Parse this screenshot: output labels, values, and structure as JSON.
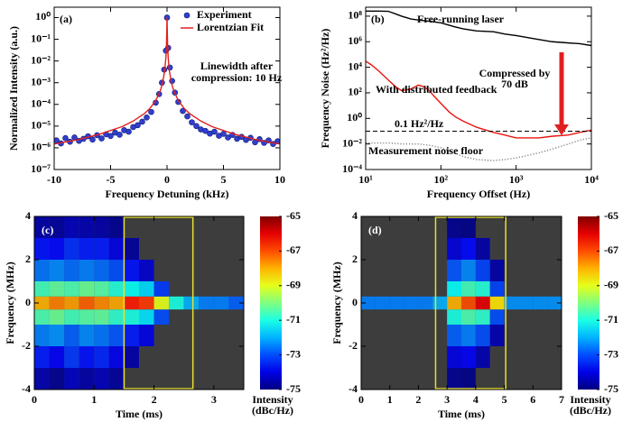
{
  "chart_data": [
    {
      "type": "line",
      "label": "(a)",
      "xlabel": "Frequency Detuning (kHz)",
      "ylabel": "Normalized Intensity (a.u.)",
      "xlim": [
        -10,
        10
      ],
      "xticks": [
        -10,
        -5,
        0,
        5,
        10
      ],
      "ylog": true,
      "ylim": [
        1e-07,
        3
      ],
      "yticks": [
        {
          "value": 1e-07,
          "label": "10⁻⁷"
        },
        {
          "value": 1e-06,
          "label": "10⁻⁶"
        },
        {
          "value": 1e-05,
          "label": "10⁻⁵"
        },
        {
          "value": 0.0001,
          "label": "10⁻⁴"
        },
        {
          "value": 0.001,
          "label": "10⁻³"
        },
        {
          "value": 0.01,
          "label": "10⁻²"
        },
        {
          "value": 0.1,
          "label": "10⁻¹"
        },
        {
          "value": 1,
          "label": "10⁰"
        }
      ],
      "background": "#ffffff",
      "legend": "upper right",
      "annotations": [
        [
          "Linewidth after",
          "compression: 10 Hz"
        ]
      ],
      "series": [
        {
          "name": "Experiment",
          "mode": "markers",
          "color": "#2f3fd0",
          "x": [
            -9.8,
            -9.4,
            -9,
            -8.6,
            -8.2,
            -7.8,
            -7.4,
            -7,
            -6.6,
            -6.2,
            -5.8,
            -5.4,
            -5,
            -4.6,
            -4.2,
            -3.8,
            -3.4,
            -3,
            -2.6,
            -2.2,
            -1.8,
            -1.4,
            -1,
            -0.7,
            -0.45,
            -0.25,
            -0.1,
            0,
            0.1,
            0.25,
            0.45,
            0.7,
            1,
            1.4,
            1.8,
            2.2,
            2.6,
            3,
            3.4,
            3.8,
            4.2,
            4.6,
            5,
            5.4,
            5.8,
            6.2,
            6.6,
            7,
            7.4,
            7.8,
            8.2,
            8.6,
            9,
            9.4,
            9.8
          ],
          "values": [
            2.2e-06,
            1.6e-06,
            2.8e-06,
            1.9e-06,
            3e-06,
            2.1e-06,
            2.6e-06,
            3.4e-06,
            2.4e-06,
            3.8e-06,
            2.7e-06,
            4.2e-06,
            3.5e-06,
            5e-06,
            4e-06,
            6.5e-06,
            5.5e-06,
            9e-06,
            1.1e-05,
            1.6e-05,
            2.5e-05,
            4.5e-05,
            0.00012,
            0.0003,
            0.001,
            0.004,
            0.03,
            1,
            0.04,
            0.005,
            0.0012,
            0.00035,
            0.00013,
            5e-05,
            2.8e-05,
            1.5e-05,
            1e-05,
            7e-06,
            6e-06,
            4.5e-06,
            5.5e-06,
            3.6e-06,
            4.4e-06,
            3e-06,
            3.9e-06,
            2.6e-06,
            3.2e-06,
            2.3e-06,
            2.9e-06,
            1.8e-06,
            2.5e-06,
            1.7e-06,
            2.2e-06,
            1.5e-06,
            2e-06
          ]
        },
        {
          "name": "Lorentzian Fit",
          "mode": "line",
          "color": "#e02020",
          "x": [
            -10,
            -8,
            -6,
            -4,
            -3,
            -2,
            -1.5,
            -1,
            -0.6,
            -0.4,
            -0.2,
            -0.1,
            -0.05,
            -0.02,
            -0.01,
            0,
            0.01,
            0.02,
            0.05,
            0.1,
            0.2,
            0.4,
            0.6,
            1,
            1.5,
            2,
            3,
            4,
            6,
            8,
            10
          ],
          "values": [
            1.5e-06,
            2.3e-06,
            4.2e-06,
            9.4e-06,
            1.7e-05,
            3.8e-05,
            6.7e-05,
            0.00015,
            0.00042,
            0.00094,
            0.0037,
            0.015,
            0.057,
            0.27,
            0.6,
            1,
            0.6,
            0.27,
            0.057,
            0.015,
            0.0037,
            0.00094,
            0.00042,
            0.00015,
            6.7e-05,
            3.8e-05,
            1.7e-05,
            9.4e-06,
            4.2e-06,
            2.3e-06,
            1.5e-06
          ]
        }
      ]
    },
    {
      "type": "line",
      "label": "(b)",
      "xlabel": "Frequency Offset (Hz)",
      "ylabel": "Frequency Noise (Hz²/Hz)",
      "xlog": true,
      "xlim": [
        10,
        10000
      ],
      "xticks": [
        {
          "value": 10,
          "label": "10¹"
        },
        {
          "value": 100,
          "label": "10²"
        },
        {
          "value": 1000,
          "label": "10³"
        },
        {
          "value": 10000,
          "label": "10⁴"
        }
      ],
      "ylog": true,
      "ylim": [
        0.0001,
        500000000.0
      ],
      "yticks": [
        {
          "value": 0.0001,
          "label": "10⁻⁴"
        },
        {
          "value": 0.01,
          "label": "10⁻²"
        },
        {
          "value": 1,
          "label": "10⁰"
        },
        {
          "value": 100,
          "label": "10²"
        },
        {
          "value": 10000.0,
          "label": "10⁴"
        },
        {
          "value": 1000000.0,
          "label": "10⁶"
        },
        {
          "value": 100000000.0,
          "label": "10⁸"
        }
      ],
      "background": "#ffffff",
      "reference_line": {
        "value": 0.1,
        "label": "0.1 Hz²/Hz"
      },
      "annotations": [
        [
          "Compressed by",
          "70 dB"
        ]
      ],
      "series": [
        {
          "name": "Free-running laser",
          "mode": "line",
          "color": "#000000",
          "x": [
            10,
            15,
            20,
            25,
            30,
            40,
            50,
            70,
            100,
            150,
            200,
            300,
            500,
            700,
            1000,
            2000,
            3000,
            5000,
            7000,
            10000
          ],
          "values": [
            250000000.0,
            250000000.0,
            240000000.0,
            150000000.0,
            100000000.0,
            60000000.0,
            50000000.0,
            40000000.0,
            30000000.0,
            15000000.0,
            10000000.0,
            7000000.0,
            6000000.0,
            4000000.0,
            3000000.0,
            1500000.0,
            1000000.0,
            800000.0,
            700000.0,
            500000.0
          ]
        },
        {
          "name": "With distributed feedback",
          "mode": "line",
          "color": "#e8150f",
          "x": [
            10,
            12,
            15,
            20,
            25,
            30,
            40,
            50,
            60,
            70,
            80,
            100,
            130,
            160,
            200,
            300,
            500,
            700,
            1000,
            2000,
            3000,
            5000,
            7000,
            10000
          ],
          "values": [
            30000.0,
            15000.0,
            5000.0,
            1000.0,
            300,
            150,
            200,
            400,
            300,
            150,
            60,
            15,
            3,
            1.2,
            0.6,
            0.2,
            0.08,
            0.05,
            0.03,
            0.03,
            0.04,
            0.05,
            0.08,
            0.12
          ]
        },
        {
          "name": "Measurement noise floor",
          "mode": "line",
          "line_style": "dotted",
          "color": "#808080",
          "x": [
            10,
            20,
            30,
            50,
            70,
            100,
            150,
            200,
            300,
            500,
            700,
            1000,
            2000,
            3000,
            5000,
            7000,
            10000
          ],
          "values": [
            0.012,
            0.012,
            0.01,
            0.01,
            0.008,
            0.005,
            0.002,
            0.001,
            0.0006,
            0.0005,
            0.0006,
            0.0008,
            0.002,
            0.004,
            0.01,
            0.02,
            0.03
          ]
        }
      ]
    },
    {
      "type": "heatmap",
      "label": "(c)",
      "xlabel": "Time (ms)",
      "ylabel": "Frequency (MHz)",
      "xlim": [
        0,
        3.5
      ],
      "xticks": [
        0,
        1,
        2,
        3
      ],
      "ylim": [
        -4,
        4
      ],
      "yticks": [
        -4,
        -2,
        0,
        2,
        4
      ],
      "background": "#3d3d3d",
      "highlight": [
        1.5,
        2.65
      ],
      "highlight_color": "#e8e030",
      "clim": [
        -75,
        -65
      ],
      "cticks": [
        -65,
        -67,
        -69,
        -71,
        -73,
        -75
      ],
      "colorbar_label": [
        "Intensity",
        "(dBc/Hz)"
      ],
      "x_bins": [
        0,
        0.25,
        0.5,
        0.75,
        1,
        1.25,
        1.5,
        1.75,
        2,
        2.25,
        2.5,
        2.75,
        3,
        3.25,
        3.5
      ],
      "y_bins": [
        -4,
        -3,
        -2,
        -1,
        -0.3,
        0.3,
        1,
        2,
        3,
        4
      ],
      "z": [
        [
          -74.5,
          -74.8,
          -74.3,
          -74.6,
          -74.4,
          -74.7,
          null,
          null,
          null,
          null,
          null,
          null,
          null,
          null
        ],
        [
          -73.5,
          -73.8,
          -73.2,
          -73.6,
          -73.4,
          -73.9,
          -74.6,
          null,
          null,
          null,
          null,
          null,
          null,
          null
        ],
        [
          -72.5,
          -72.3,
          -72.8,
          -72.4,
          -72.6,
          -72.9,
          -73.5,
          -74,
          null,
          null,
          null,
          null,
          null,
          null
        ],
        [
          -70.5,
          -70.2,
          -70.6,
          -70.4,
          -70.3,
          -70.8,
          -71,
          -71.5,
          -73,
          null,
          null,
          null,
          null,
          null
        ],
        [
          -68,
          -67.5,
          -67.8,
          -67.2,
          -67.6,
          -67.9,
          -66.5,
          -66.8,
          -69,
          -71,
          -72,
          -72.5,
          -72.5,
          -72.8
        ],
        [
          -70.6,
          -70.3,
          -70.5,
          -70.2,
          -70.4,
          -70.9,
          -71.2,
          -71.6,
          -73.2,
          null,
          null,
          null,
          null,
          null
        ],
        [
          -72.6,
          -72.4,
          -72.7,
          -72.5,
          -72.7,
          -73,
          -73.6,
          -74.2,
          null,
          null,
          null,
          null,
          null,
          null
        ],
        [
          -73.6,
          -73.7,
          -73.3,
          -73.5,
          -73.5,
          -74,
          -74.7,
          null,
          null,
          null,
          null,
          null,
          null,
          null
        ],
        [
          -74.6,
          -74.7,
          -74.4,
          -74.5,
          -74.6,
          -74.8,
          null,
          null,
          null,
          null,
          null,
          null,
          null,
          null
        ]
      ]
    },
    {
      "type": "heatmap",
      "label": "(d)",
      "xlabel": "Time (ms)",
      "ylabel": "Frequency (MHz)",
      "xlim": [
        0,
        7
      ],
      "xticks": [
        0,
        1,
        2,
        3,
        4,
        5,
        6,
        7
      ],
      "ylim": [
        -4,
        4
      ],
      "yticks": [
        -4,
        -2,
        0,
        2,
        4
      ],
      "background": "#3d3d3d",
      "highlight": [
        2.6,
        5.05
      ],
      "highlight_color": "#e8e030",
      "clim": [
        -75,
        -65
      ],
      "cticks": [
        -65,
        -67,
        -69,
        -71,
        -73,
        -75
      ],
      "colorbar_label": [
        "Intensity",
        "(dBc/Hz)"
      ],
      "x_bins": [
        0,
        0.5,
        1,
        1.5,
        2,
        2.5,
        3,
        3.5,
        4,
        4.5,
        5,
        5.5,
        6,
        6.5,
        7
      ],
      "y_bins": [
        -4,
        -3,
        -2,
        -1,
        -0.3,
        0.3,
        1,
        2,
        3,
        4
      ],
      "z": [
        [
          null,
          null,
          null,
          null,
          null,
          null,
          -74.8,
          -74.9,
          null,
          null,
          null,
          null,
          null,
          null
        ],
        [
          null,
          null,
          null,
          null,
          null,
          null,
          -74,
          -73.8,
          -74.5,
          null,
          null,
          null,
          null,
          null
        ],
        [
          null,
          null,
          null,
          null,
          null,
          null,
          -72.8,
          -72.5,
          -73,
          -74.5,
          null,
          null,
          null,
          null
        ],
        [
          null,
          null,
          null,
          null,
          null,
          null,
          -71,
          -70.5,
          -70.8,
          -73,
          null,
          null,
          null,
          null
        ],
        [
          -72.5,
          -72.5,
          -72.5,
          -72.5,
          -72.5,
          -72,
          -68,
          -67,
          -66,
          -68.5,
          -72.3,
          -72.3,
          -72.3,
          -72.3
        ],
        [
          null,
          null,
          null,
          null,
          null,
          null,
          -71.2,
          -70.6,
          -70.9,
          -73.1,
          null,
          null,
          null,
          null
        ],
        [
          null,
          null,
          null,
          null,
          null,
          null,
          -72.9,
          -72.4,
          -73.1,
          -74.6,
          null,
          null,
          null,
          null
        ],
        [
          null,
          null,
          null,
          null,
          null,
          null,
          -74.1,
          -73.7,
          -74.6,
          null,
          null,
          null,
          null,
          null
        ],
        [
          null,
          null,
          null,
          null,
          null,
          null,
          -74.8,
          -74.9,
          null,
          null,
          null,
          null,
          null,
          null
        ]
      ]
    }
  ]
}
